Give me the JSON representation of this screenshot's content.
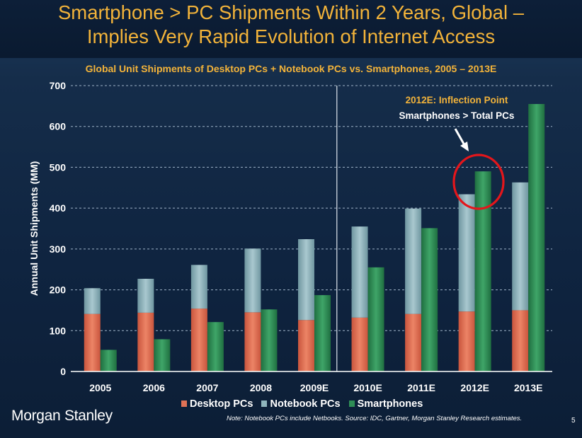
{
  "header": {
    "title_line1": "Smartphone > PC Shipments Within 2 Years, Global –",
    "title_line2": "Implies Very Rapid Evolution of Internet Access"
  },
  "footer": {
    "brand": "Morgan Stanley",
    "note": "Note: Notebook PCs include Netbooks. Source: IDC, Gartner, Morgan Stanley Research estimates.",
    "page_number": "5"
  },
  "chart_data": {
    "type": "bar",
    "stacked_pc": true,
    "title": "Global Unit Shipments of Desktop PCs + Notebook PCs vs. Smartphones, 2005 – 2013E",
    "ylabel": "Annual Unit Shipments (MM)",
    "xlabel": "",
    "ylim": [
      0,
      700
    ],
    "yticks": [
      0,
      100,
      200,
      300,
      400,
      500,
      600,
      700
    ],
    "grid": true,
    "categories": [
      "2005",
      "2006",
      "2007",
      "2008",
      "2009E",
      "2010E",
      "2011E",
      "2012E",
      "2013E"
    ],
    "series": [
      {
        "name": "Desktop PCs",
        "color": "#e07256",
        "stack": "pc",
        "values": [
          141,
          144,
          154,
          145,
          126,
          132,
          141,
          147,
          150
        ]
      },
      {
        "name": "Notebook PCs",
        "color": "#8fb5bd",
        "stack": "pc",
        "values": [
          63,
          83,
          107,
          156,
          198,
          223,
          258,
          287,
          313
        ]
      },
      {
        "name": "Smartphones",
        "color": "#2f8e56",
        "stack": "phone",
        "values": [
          53,
          79,
          121,
          152,
          187,
          255,
          351,
          490,
          655
        ]
      }
    ],
    "legend_position": "bottom",
    "divider_after": "2009E",
    "annotation": {
      "line1": "2012E: Inflection Point",
      "line2": "Smartphones > Total PCs",
      "target": "2012E"
    }
  }
}
